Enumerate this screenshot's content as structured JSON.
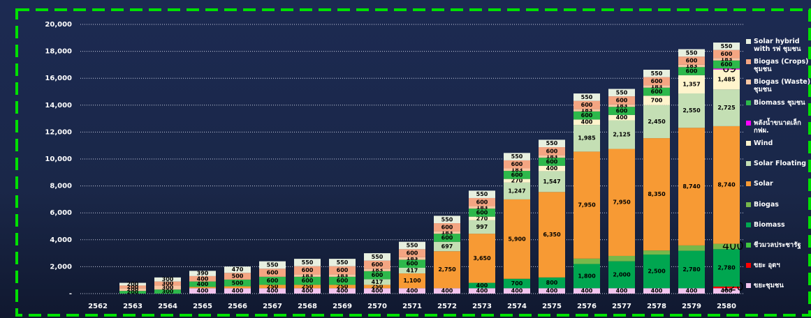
{
  "chart_data": {
    "type": "stacked-bar",
    "categories": [
      "2562",
      "2563",
      "2564",
      "2565",
      "2566",
      "2567",
      "2568",
      "2569",
      "2570",
      "2571",
      "2572",
      "2573",
      "2574",
      "2575",
      "2576",
      "2577",
      "2578",
      "2579",
      "2580"
    ],
    "ylim": [
      0,
      20000
    ],
    "yticks": [
      {
        "value": 0,
        "label": "-"
      },
      {
        "value": 2000,
        "label": "2,000"
      },
      {
        "value": 4000,
        "label": "4,000"
      },
      {
        "value": 6000,
        "label": "6,000"
      },
      {
        "value": 8000,
        "label": "8,000"
      },
      {
        "value": 10000,
        "label": "10,000"
      },
      {
        "value": 12000,
        "label": "12,000"
      },
      {
        "value": 14000,
        "label": "14,000"
      },
      {
        "value": 16000,
        "label": "16,000"
      },
      {
        "value": 18000,
        "label": "18,000"
      },
      {
        "value": 20000,
        "label": "20,000"
      }
    ],
    "grid": true,
    "legend": "right",
    "series": [
      {
        "name": "ขยะชุมชน",
        "color": "#f2c4ee",
        "values": [
          0,
          0,
          0,
          400,
          400,
          400,
          400,
          400,
          400,
          400,
          400,
          400,
          400,
          400,
          400,
          400,
          400,
          400,
          400
        ]
      },
      {
        "name": "ขยะ อุตฯ",
        "color": "#ff0000",
        "highlight": true,
        "values": [
          0,
          0,
          0,
          0,
          0,
          0,
          0,
          0,
          0,
          0,
          0,
          0,
          0,
          0,
          0,
          0,
          0,
          0,
          120
        ]
      },
      {
        "name": "ชีวมวลประชารัฐ",
        "color": "#3fc43f",
        "values": [
          0,
          0,
          0,
          0,
          0,
          0,
          0,
          0,
          0,
          0,
          0,
          0,
          0,
          0,
          0,
          0,
          0,
          0,
          0
        ]
      },
      {
        "name": "Biomass",
        "color": "#00a650",
        "values": [
          0,
          0,
          0,
          0,
          0,
          0,
          0,
          0,
          0,
          0,
          0,
          400,
          700,
          800,
          1800,
          2000,
          2500,
          2780,
          2780
        ],
        "value_labels": [
          null,
          null,
          null,
          null,
          null,
          null,
          null,
          null,
          null,
          null,
          null,
          "400",
          "700",
          "800",
          "1,800",
          "2,000",
          "2,500",
          "2,780",
          "2,780"
        ]
      },
      {
        "name": "Biogas",
        "color": "#77b84a",
        "highlight": true,
        "values": [
          0,
          0,
          0,
          0,
          0,
          0,
          0,
          0,
          0,
          0,
          0,
          0,
          0,
          0,
          400,
          400,
          300,
          400,
          400
        ]
      },
      {
        "name": "Solar",
        "color": "#f79a34",
        "values": [
          0,
          0,
          0,
          100,
          140,
          250,
          250,
          250,
          250,
          1100,
          2750,
          3650,
          5900,
          6350,
          7950,
          7950,
          8350,
          8740,
          8740
        ],
        "value_labels": [
          null,
          null,
          null,
          null,
          null,
          "250",
          "250",
          "250",
          "250",
          "1,100",
          "2,750",
          "3,650",
          "5,900",
          "6,350",
          "7,950",
          "7,950",
          "8,350",
          "8,740",
          "8,740"
        ]
      },
      {
        "name": "Solar Floating",
        "color": "#c4dfb4",
        "values": [
          0,
          0,
          0,
          0,
          0,
          0,
          0,
          0,
          417,
          417,
          697,
          997,
          1247,
          1547,
          1985,
          2125,
          2450,
          2550,
          2725
        ],
        "value_labels": [
          null,
          null,
          null,
          null,
          null,
          null,
          null,
          null,
          "417",
          "417",
          "697",
          "997",
          "1,247",
          "1,547",
          "1,985",
          "2,125",
          "2,450",
          "2,550",
          "2,725"
        ]
      },
      {
        "name": "Wind",
        "color": "#fff4cc",
        "values": [
          0,
          0,
          0,
          0,
          0,
          0,
          0,
          0,
          0,
          0,
          0,
          270,
          270,
          400,
          400,
          400,
          700,
          1357,
          1485
        ],
        "value_labels": [
          null,
          null,
          null,
          null,
          null,
          null,
          null,
          null,
          null,
          null,
          null,
          "270",
          "270",
          "400",
          "400",
          "400",
          "700",
          "1,357",
          "1,485"
        ]
      },
      {
        "name": "พลังน้ำขนาดเล็ก กฟผ.",
        "color": "#ff00ff",
        "highlight": true,
        "values": [
          0,
          0,
          0,
          0,
          0,
          0,
          0,
          0,
          0,
          0,
          0,
          0,
          0,
          0,
          0,
          0,
          0,
          0,
          69
        ]
      },
      {
        "name": "Biomass ชุมชน",
        "color": "#2db84b",
        "values": [
          0,
          200,
          300,
          400,
          500,
          600,
          600,
          600,
          600,
          600,
          600,
          600,
          600,
          600,
          600,
          600,
          600,
          600,
          600
        ]
      },
      {
        "name": "Biogas (Waste) ชุมชน",
        "color": "#fbc7a4",
        "values": [
          0,
          200,
          300,
          0,
          0,
          0,
          183,
          183,
          183,
          183,
          183,
          183,
          183,
          183,
          183,
          183,
          183,
          183,
          183
        ]
      },
      {
        "name": "Biogas (Crops) ชุมชน",
        "color": "#f4a582",
        "values": [
          0,
          200,
          300,
          400,
          500,
          600,
          600,
          600,
          600,
          600,
          600,
          600,
          600,
          600,
          600,
          600,
          600,
          600,
          600
        ]
      },
      {
        "name": "Solar hybrid with รฟ ชุมชน",
        "color": "#e8f0e0",
        "values": [
          0,
          200,
          300,
          390,
          470,
          550,
          550,
          550,
          550,
          550,
          550,
          550,
          550,
          550,
          550,
          550,
          550,
          550,
          550
        ]
      }
    ]
  }
}
